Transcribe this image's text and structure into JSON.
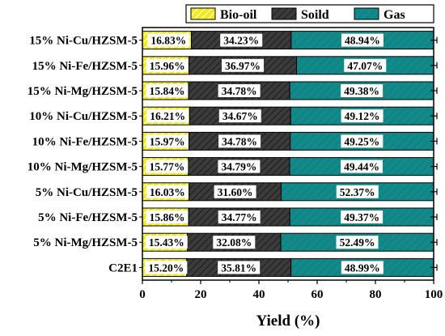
{
  "chart_data": {
    "type": "bar",
    "orientation": "horizontal",
    "stacked": true,
    "categories": [
      "15% Ni-Cu/HZSM-5",
      "15% Ni-Fe/HZSM-5",
      "15% Ni-Mg/HZSM-5",
      "10% Ni-Cu/HZSM-5",
      "10% Ni-Fe/HZSM-5",
      "10% Ni-Mg/HZSM-5",
      "5% Ni-Cu/HZSM-5",
      "5% Ni-Fe/HZSM-5",
      "5% Ni-Mg/HZSM-5",
      "C2E1"
    ],
    "series": [
      {
        "name": "Bio-oil",
        "color": "#f2ea1c",
        "pattern": "hatch-light",
        "values": [
          16.83,
          15.96,
          15.84,
          16.21,
          15.97,
          15.77,
          16.03,
          15.86,
          15.43,
          15.2
        ],
        "labels": [
          "16.83%",
          "15.96%",
          "15.84%",
          "16.21%",
          "15.97%",
          "15.77%",
          "16.03%",
          "15.86%",
          "15.43%",
          "15.20%"
        ]
      },
      {
        "name": "Soild",
        "color": "#3b3b3b",
        "pattern": "hatch-dark",
        "values": [
          34.23,
          36.97,
          34.78,
          34.67,
          34.78,
          34.79,
          31.6,
          34.77,
          32.08,
          35.81
        ],
        "labels": [
          "34.23%",
          "36.97%",
          "34.78%",
          "34.67%",
          "34.78%",
          "34.79%",
          "31.60%",
          "34.77%",
          "32.08%",
          "35.81%"
        ]
      },
      {
        "name": "Gas",
        "color": "#138a8a",
        "pattern": "hatch-teal",
        "values": [
          48.94,
          47.07,
          49.38,
          49.12,
          49.25,
          49.44,
          52.37,
          49.37,
          52.49,
          48.99
        ],
        "labels": [
          "48.94%",
          "47.07%",
          "49.38%",
          "49.12%",
          "49.25%",
          "49.44%",
          "52.37%",
          "49.37%",
          "52.49%",
          "48.99%"
        ]
      }
    ],
    "x_ticks": [
      "0",
      "20",
      "40",
      "60",
      "80",
      "100"
    ],
    "xlim": [
      0,
      100
    ],
    "xlabel": "Yield (%)",
    "ylabel": "",
    "title": "",
    "error_bars": true,
    "legend_position": "top",
    "grid": false
  }
}
